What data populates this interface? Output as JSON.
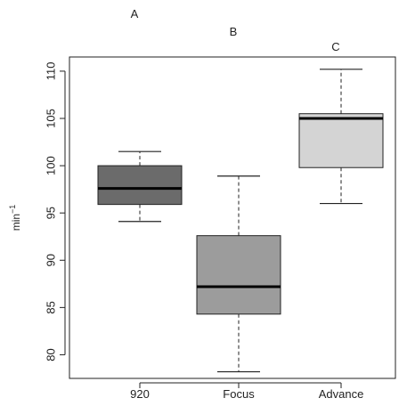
{
  "chart_data": {
    "type": "boxplot",
    "title": "",
    "xlabel": "",
    "ylabel": "min",
    "ylabel_superscript": "−1",
    "ylim": [
      77.5,
      111.5
    ],
    "yticks": [
      80,
      85,
      90,
      95,
      100,
      105,
      110
    ],
    "grid": false,
    "legend": "none",
    "categories": [
      "920",
      "Focus",
      "Advance"
    ],
    "group_letters": [
      "A",
      "B",
      "C"
    ],
    "boxes": [
      {
        "label": "920",
        "letter": "A",
        "whisker_low": 94.1,
        "q1": 95.9,
        "median": 97.6,
        "q3": 100.0,
        "whisker_high": 101.5,
        "fill": "#6b6b6b"
      },
      {
        "label": "Focus",
        "letter": "B",
        "whisker_low": 78.2,
        "q1": 84.3,
        "median": 87.2,
        "q3": 92.6,
        "whisker_high": 98.9,
        "fill": "#9c9c9c"
      },
      {
        "label": "Advance",
        "letter": "C",
        "whisker_low": 96.0,
        "q1": 99.8,
        "median": 105.0,
        "q3": 105.5,
        "whisker_high": 110.2,
        "fill": "#d4d4d4"
      }
    ]
  }
}
